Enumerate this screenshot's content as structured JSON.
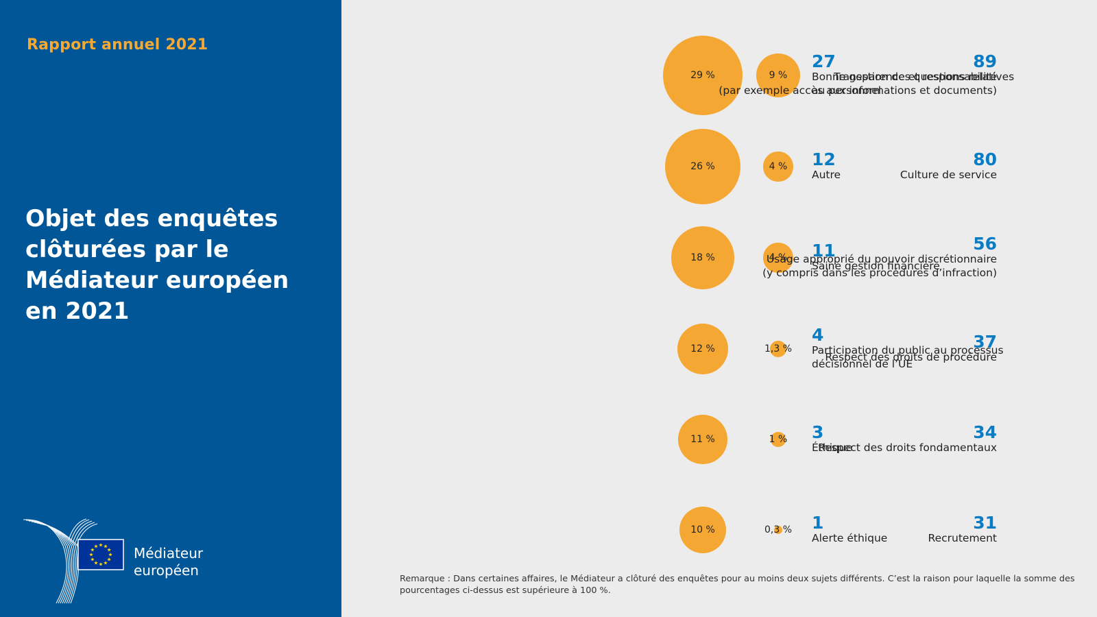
{
  "header": {
    "report_label": "Rapport annuel 2021",
    "title_lines": [
      "Objet des enquêtes",
      "clôturées par le",
      "Médiateur européen",
      "en 2021"
    ]
  },
  "logo": {
    "text_lines": [
      "Médiateur",
      "européen"
    ],
    "icon": "eu-flag-icon",
    "colors": {
      "flag_blue": "#003399",
      "stars": "#ffdd00"
    }
  },
  "colors": {
    "panel_bg": "#005697",
    "accent_orange": "#f5a733",
    "number_blue": "#0a7cc4",
    "page_bg": "#ececec"
  },
  "chart_data": {
    "type": "bubble",
    "title": "Objet des enquêtes clôturées par le Médiateur européen en 2021",
    "left_column": [
      {
        "count": "89",
        "label_lines": [
          "Transparence et responsabilité",
          "(par exemple accès aux informations et documents)"
        ],
        "percent_label": "29 %",
        "percent": 29
      },
      {
        "count": "80",
        "label_lines": [
          "Culture de service"
        ],
        "percent_label": "26 %",
        "percent": 26
      },
      {
        "count": "56",
        "label_lines": [
          "Usage approprié du pouvoir discrétionnaire",
          "(y compris dans les procédures d’infraction)"
        ],
        "percent_label": "18 %",
        "percent": 18
      },
      {
        "count": "37",
        "label_lines": [
          "Respect des droits de procédure"
        ],
        "percent_label": "12 %",
        "percent": 12
      },
      {
        "count": "34",
        "label_lines": [
          "Respect des droits fondamentaux"
        ],
        "percent_label": "11 %",
        "percent": 11
      },
      {
        "count": "31",
        "label_lines": [
          "Recrutement"
        ],
        "percent_label": "10 %",
        "percent": 10
      }
    ],
    "right_column": [
      {
        "count": "27",
        "label_lines": [
          "Bonne gestion des questions relatives",
          "au personnel"
        ],
        "percent_label": "9 %",
        "percent": 9
      },
      {
        "count": "12",
        "label_lines": [
          "Autre"
        ],
        "percent_label": "4 %",
        "percent": 4
      },
      {
        "count": "11",
        "label_lines": [
          "Saine gestion financière"
        ],
        "percent_label": "4 %",
        "percent": 4
      },
      {
        "count": "4",
        "label_lines": [
          "Participation du public au processus",
          "décisionnel de l’UE"
        ],
        "percent_label": "1,3 %",
        "percent": 1.3
      },
      {
        "count": "3",
        "label_lines": [
          "Éthique"
        ],
        "percent_label": "1 %",
        "percent": 1
      },
      {
        "count": "1",
        "label_lines": [
          "Alerte éthique"
        ],
        "percent_label": "0,3 %",
        "percent": 0.3
      }
    ],
    "note": "Remarque : Dans certaines affaires, le Médiateur a clôturé des enquêtes pour au moins deux sujets différents. C’est la raison pour laquelle la somme des pourcentages ci-dessus est supérieure à 100 %."
  }
}
